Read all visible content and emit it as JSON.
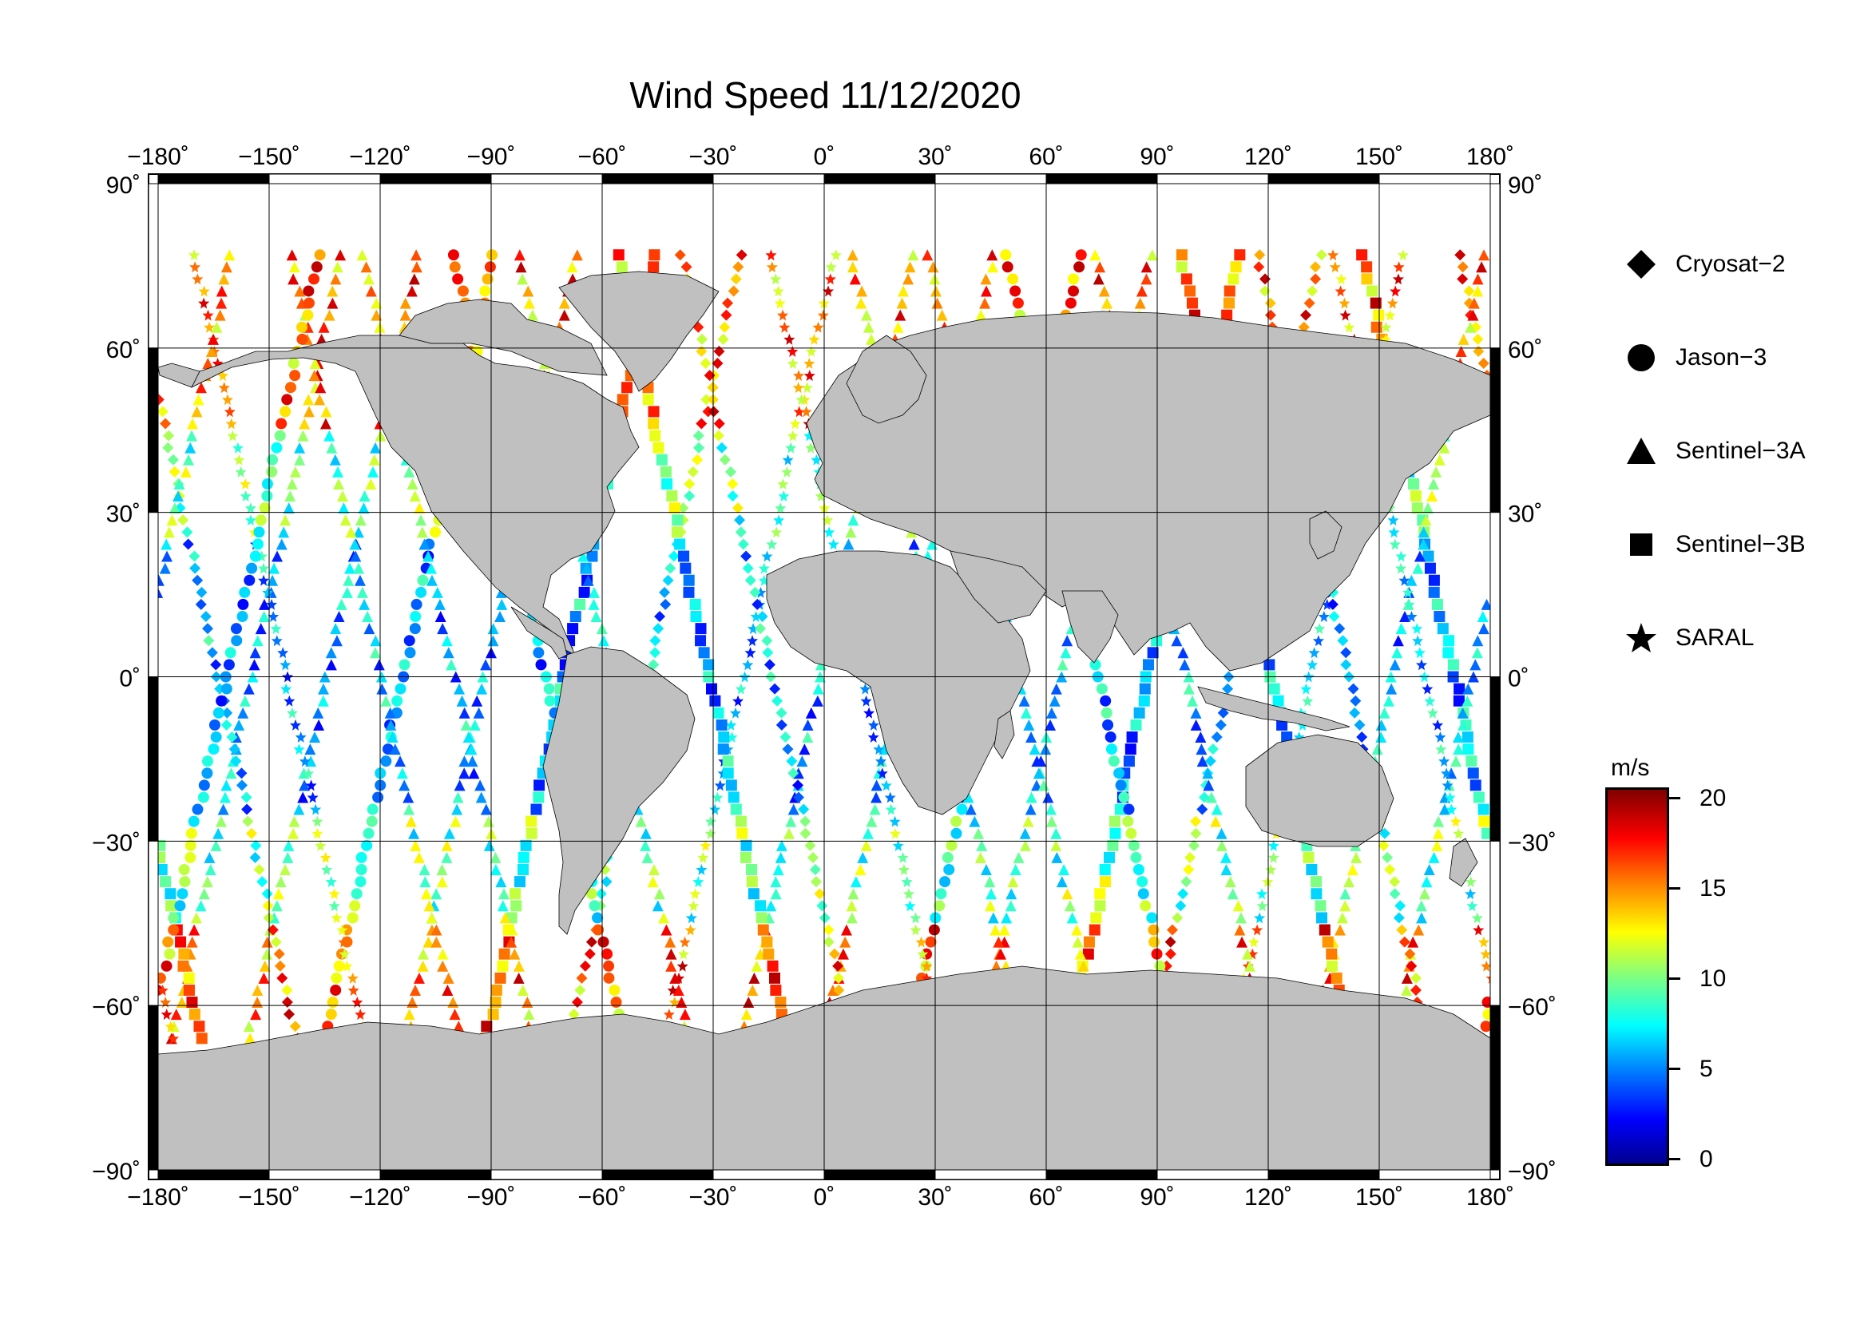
{
  "title": "Wind Speed 11/12/2020",
  "x_ticks": [
    "−180˚",
    "−150˚",
    "−120˚",
    "−90˚",
    "−60˚",
    "−30˚",
    "0˚",
    "30˚",
    "60˚",
    "90˚",
    "120˚",
    "150˚",
    "180˚"
  ],
  "y_ticks": [
    "90˚",
    "60˚",
    "30˚",
    "0˚",
    "−30˚",
    "−60˚",
    "−90˚"
  ],
  "legend": [
    {
      "label": "Cryosat−2",
      "icon": "diamond-icon"
    },
    {
      "label": "Jason−3",
      "icon": "circle-icon"
    },
    {
      "label": "Sentinel−3A",
      "icon": "triangle-icon"
    },
    {
      "label": "Sentinel−3B",
      "icon": "square-icon"
    },
    {
      "label": "SARAL",
      "icon": "star-icon"
    }
  ],
  "colorbar": {
    "units": "m/s",
    "labels": [
      "0",
      "5",
      "10",
      "15",
      "20"
    ],
    "min": 0,
    "max": 20
  },
  "colors": {
    "land": "#c0c0c0",
    "ocean": "#ffffff",
    "grid": "#000000"
  },
  "chart_data": {
    "type": "scatter",
    "title": "Wind Speed 11/12/2020",
    "projection": "equirectangular",
    "xlim": [
      -180,
      180
    ],
    "ylim": [
      -90,
      90
    ],
    "grid": true,
    "xticks": [
      -180,
      -150,
      -120,
      -90,
      -60,
      -30,
      0,
      30,
      60,
      90,
      120,
      150,
      180
    ],
    "yticks": [
      90,
      60,
      30,
      0,
      -30,
      -60,
      -90
    ],
    "colorscale": "jet",
    "value_units": "m/s",
    "value_range": [
      0,
      20
    ],
    "legend_position": "right",
    "series": [
      {
        "name": "Cryosat−2",
        "marker": "diamond"
      },
      {
        "name": "Jason−3",
        "marker": "circle"
      },
      {
        "name": "Sentinel−3A",
        "marker": "triangle"
      },
      {
        "name": "Sentinel−3B",
        "marker": "square"
      },
      {
        "name": "SARAL",
        "marker": "star"
      }
    ]
  }
}
